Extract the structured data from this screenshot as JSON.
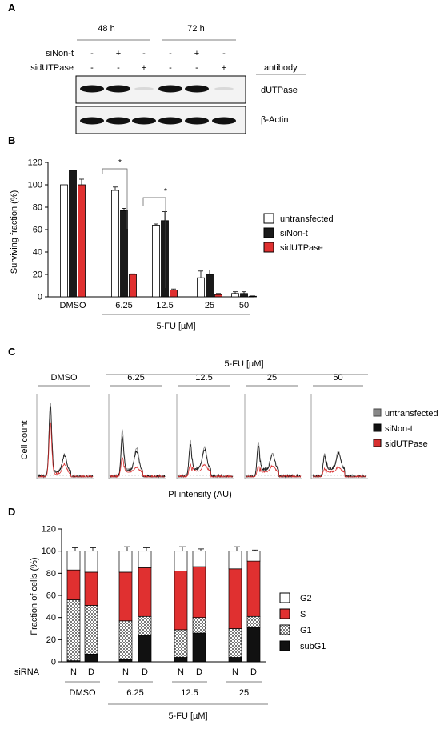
{
  "panel_a": {
    "label": "A",
    "timepoints": [
      "48 h",
      "72 h"
    ],
    "row_labels": [
      "siNon-t",
      "sidUTPase"
    ],
    "row_values": [
      [
        "-",
        "+",
        "-",
        "-",
        "+",
        "-"
      ],
      [
        "-",
        "-",
        "+",
        "-",
        "-",
        "+"
      ]
    ],
    "antibody_label": "antibody",
    "blots": [
      {
        "name": "dUTPase",
        "intensity": [
          1,
          1,
          0,
          1,
          1,
          0
        ]
      },
      {
        "name": "β-Actin",
        "intensity": [
          1,
          1,
          1,
          1,
          1,
          1
        ]
      }
    ]
  },
  "panel_b": {
    "label": "B",
    "ylabel": "Surviving  fraction  (%)",
    "group_label": "5-FU [µM]",
    "significance": "*",
    "legend": [
      "untransfected",
      "siNon-t",
      "sidUTPase"
    ]
  },
  "panel_c": {
    "label": "C",
    "top_label": "5-FU [µM]",
    "conditions": [
      "DMSO",
      "6.25",
      "12.5",
      "25",
      "50"
    ],
    "xlabel": "PI intensity (AU)",
    "ylabel": "Cell count",
    "legend": [
      "untransfected",
      "siNon-t",
      "sidUTPase"
    ]
  },
  "panel_d": {
    "label": "D",
    "ylabel": "Fraction of cells  (%)",
    "sirna_label": "siRNA",
    "group_label": "5-FU [µM]",
    "groups": [
      "DMSO",
      "6.25",
      "12.5",
      "25"
    ],
    "legend": [
      "G2",
      "S",
      "G1",
      "subG1"
    ]
  },
  "colors": {
    "untransfected": "#ffffff",
    "siNon_t": "#1a1a1a",
    "sidUTPase": "#e03030",
    "g1_pattern": "checker",
    "legend_untransfected_c": "#888888"
  },
  "chart_data": [
    {
      "type": "bar",
      "categories": [
        "DMSO",
        "6.25",
        "12.5",
        "25",
        "50"
      ],
      "series": [
        {
          "name": "untransfected",
          "values": [
            100,
            95,
            64,
            17,
            3
          ],
          "errors": [
            0,
            3,
            1,
            6,
            1.5
          ]
        },
        {
          "name": "siNon-t",
          "values": [
            113,
            77,
            68,
            20,
            3
          ],
          "errors": [
            0,
            2,
            8,
            4,
            1.5
          ]
        },
        {
          "name": "sidUTPase",
          "values": [
            100,
            20,
            6,
            2,
            0.5
          ],
          "errors": [
            5,
            0.5,
            1,
            1,
            0.3
          ]
        }
      ],
      "ylabel": "Surviving  fraction  (%)",
      "xlabel": "5-FU [µM]",
      "ylim": [
        0,
        120
      ],
      "yticks": [
        0,
        20,
        40,
        60,
        80,
        100,
        120
      ]
    },
    {
      "type": "bar",
      "stacked": true,
      "categories": [
        "N",
        "D",
        "N",
        "D",
        "N",
        "D",
        "N",
        "D"
      ],
      "groups": [
        "DMSO",
        "6.25",
        "12.5",
        "25"
      ],
      "series": [
        {
          "name": "subG1",
          "values": [
            1,
            7,
            2,
            24,
            4,
            26,
            4,
            31
          ]
        },
        {
          "name": "G1",
          "values": [
            55,
            44,
            35,
            17,
            25,
            14,
            26,
            10
          ]
        },
        {
          "name": "S",
          "values": [
            27,
            30,
            44,
            44,
            53,
            46,
            54,
            50
          ]
        },
        {
          "name": "G2",
          "values": [
            17,
            19,
            19,
            15,
            18,
            14,
            16,
            9
          ]
        }
      ],
      "errors": [
        {
          "G1": 3,
          "S": 0,
          "G2": 3
        },
        {
          "G1": 7,
          "S": 0,
          "G2": 3
        },
        {
          "G1": 6,
          "S": 0,
          "G2": 4
        },
        {
          "G1": 6,
          "S": 10,
          "G2": 3
        },
        {
          "G1": 6,
          "S": 0,
          "G2": 4
        },
        {
          "G1": 4,
          "S": 5,
          "G2": 2
        },
        {
          "G1": 2,
          "S": 2,
          "G2": 4
        },
        {
          "G1": 2,
          "S": 0,
          "G2": 1
        }
      ],
      "ylabel": "Fraction of cells  (%)",
      "ylim": [
        0,
        120
      ],
      "yticks": [
        0,
        20,
        40,
        60,
        80,
        100,
        120
      ]
    }
  ]
}
